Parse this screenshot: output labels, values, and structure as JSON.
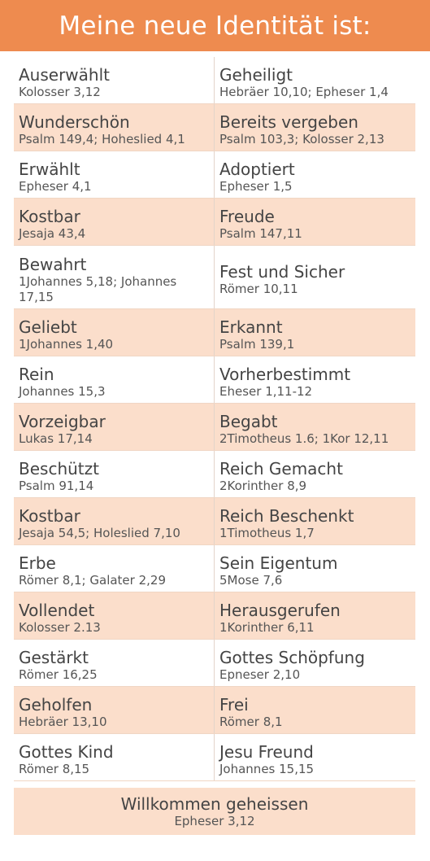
{
  "header": {
    "title": "Meine neue Identität ist:"
  },
  "rows": [
    {
      "left": {
        "word": "Auserwählt",
        "ref": "Kolosser 3,12"
      },
      "right": {
        "word": "Geheiligt",
        "ref": "Hebräer 10,10; Epheser 1,4"
      }
    },
    {
      "left": {
        "word": "Wunderschön",
        "ref": "Psalm 149,4; Hoheslied 4,1"
      },
      "right": {
        "word": "Bereits vergeben",
        "ref": "Psalm 103,3; Kolosser 2,13"
      }
    },
    {
      "left": {
        "word": "Erwählt",
        "ref": "Epheser 4,1"
      },
      "right": {
        "word": "Adoptiert",
        "ref": "Epheser 1,5"
      }
    },
    {
      "left": {
        "word": "Kostbar",
        "ref": "Jesaja 43,4"
      },
      "right": {
        "word": "Freude",
        "ref": "Psalm 147,11"
      }
    },
    {
      "left": {
        "word": "Bewahrt",
        "ref": "1Johannes 5,18; Johannes 17,15"
      },
      "right": {
        "word": "Fest und Sicher",
        "ref": "Römer 10,11"
      }
    },
    {
      "left": {
        "word": "Geliebt",
        "ref": "1Johannes 1,40"
      },
      "right": {
        "word": "Erkannt",
        "ref": "Psalm 139,1"
      }
    },
    {
      "left": {
        "word": "Rein",
        "ref": "Johannes 15,3"
      },
      "right": {
        "word": "Vorherbestimmt",
        "ref": "Eheser 1,11-12"
      }
    },
    {
      "left": {
        "word": "Vorzeigbar",
        "ref": "Lukas 17,14"
      },
      "right": {
        "word": "Begabt",
        "ref": "2Timotheus 1.6; 1Kor 12,11"
      }
    },
    {
      "left": {
        "word": "Beschützt",
        "ref": "Psalm 91,14"
      },
      "right": {
        "word": "Reich Gemacht",
        "ref": "2Korinther 8,9"
      }
    },
    {
      "left": {
        "word": "Kostbar",
        "ref": "Jesaja 54,5; Holeslied 7,10"
      },
      "right": {
        "word": "Reich Beschenkt",
        "ref": "1Timotheus 1,7"
      }
    },
    {
      "left": {
        "word": "Erbe",
        "ref": "Römer 8,1; Galater 2,29"
      },
      "right": {
        "word": "Sein Eigentum",
        "ref": "5Mose 7,6"
      }
    },
    {
      "left": {
        "word": "Vollendet",
        "ref": "Kolosser 2.13"
      },
      "right": {
        "word": "Herausgerufen",
        "ref": "1Korinther 6,11"
      }
    },
    {
      "left": {
        "word": "Gestärkt",
        "ref": "Römer 16,25"
      },
      "right": {
        "word": "Gottes Schöpfung",
        "ref": "Epneser 2,10"
      }
    },
    {
      "left": {
        "word": "Geholfen",
        "ref": "Hebräer 13,10"
      },
      "right": {
        "word": "Frei",
        "ref": "Römer 8,1"
      }
    },
    {
      "left": {
        "word": "Gottes Kind",
        "ref": "Römer 8,15"
      },
      "right": {
        "word": "Jesu Freund",
        "ref": "Johannes 15,15"
      }
    }
  ],
  "footer": {
    "word": "Willkommen geheissen",
    "ref": "Epheser 3,12"
  },
  "colors": {
    "header_bg": "#ee8b4f",
    "shaded_row": "#fbdecb",
    "text": "#444444"
  }
}
